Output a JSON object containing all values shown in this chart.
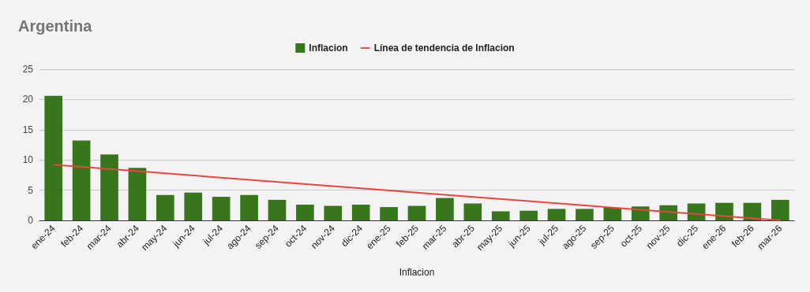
{
  "chart_data": {
    "type": "bar",
    "title": "Argentina",
    "xlabel": "Inflacion",
    "categories": [
      "ene-24",
      "feb-24",
      "mar-24",
      "abr-24",
      "may-24",
      "jun-24",
      "jul-24",
      "ago-24",
      "sep-24",
      "oct-24",
      "nov-24",
      "dic-24",
      "ene-25",
      "feb-25",
      "mar-25",
      "abr-25",
      "may-25",
      "jun-25",
      "jul-25",
      "ago-25",
      "sep-25",
      "oct-25",
      "nov-25",
      "dic-25",
      "ene-26",
      "feb-26",
      "mar-26"
    ],
    "series": [
      {
        "name": "Inflacion",
        "color": "#38761d",
        "values": [
          20.6,
          13.2,
          10.9,
          8.7,
          4.2,
          4.6,
          3.9,
          4.2,
          3.4,
          2.6,
          2.4,
          2.6,
          2.2,
          2.4,
          3.7,
          2.8,
          1.5,
          1.6,
          1.9,
          1.9,
          2.1,
          2.3,
          2.5,
          2.8,
          2.9,
          2.9,
          3.4
        ]
      },
      {
        "name": "Línea de tendencia de Inflacion",
        "type": "line",
        "color": "#e8453c",
        "x": [
          "ene-24",
          "mar-26"
        ],
        "values": [
          9.2,
          0
        ]
      }
    ],
    "ylim": [
      0,
      25
    ],
    "yticks": [
      0,
      5,
      10,
      15,
      20,
      25
    ],
    "grid": "y",
    "legend": "top",
    "marker": "none"
  }
}
